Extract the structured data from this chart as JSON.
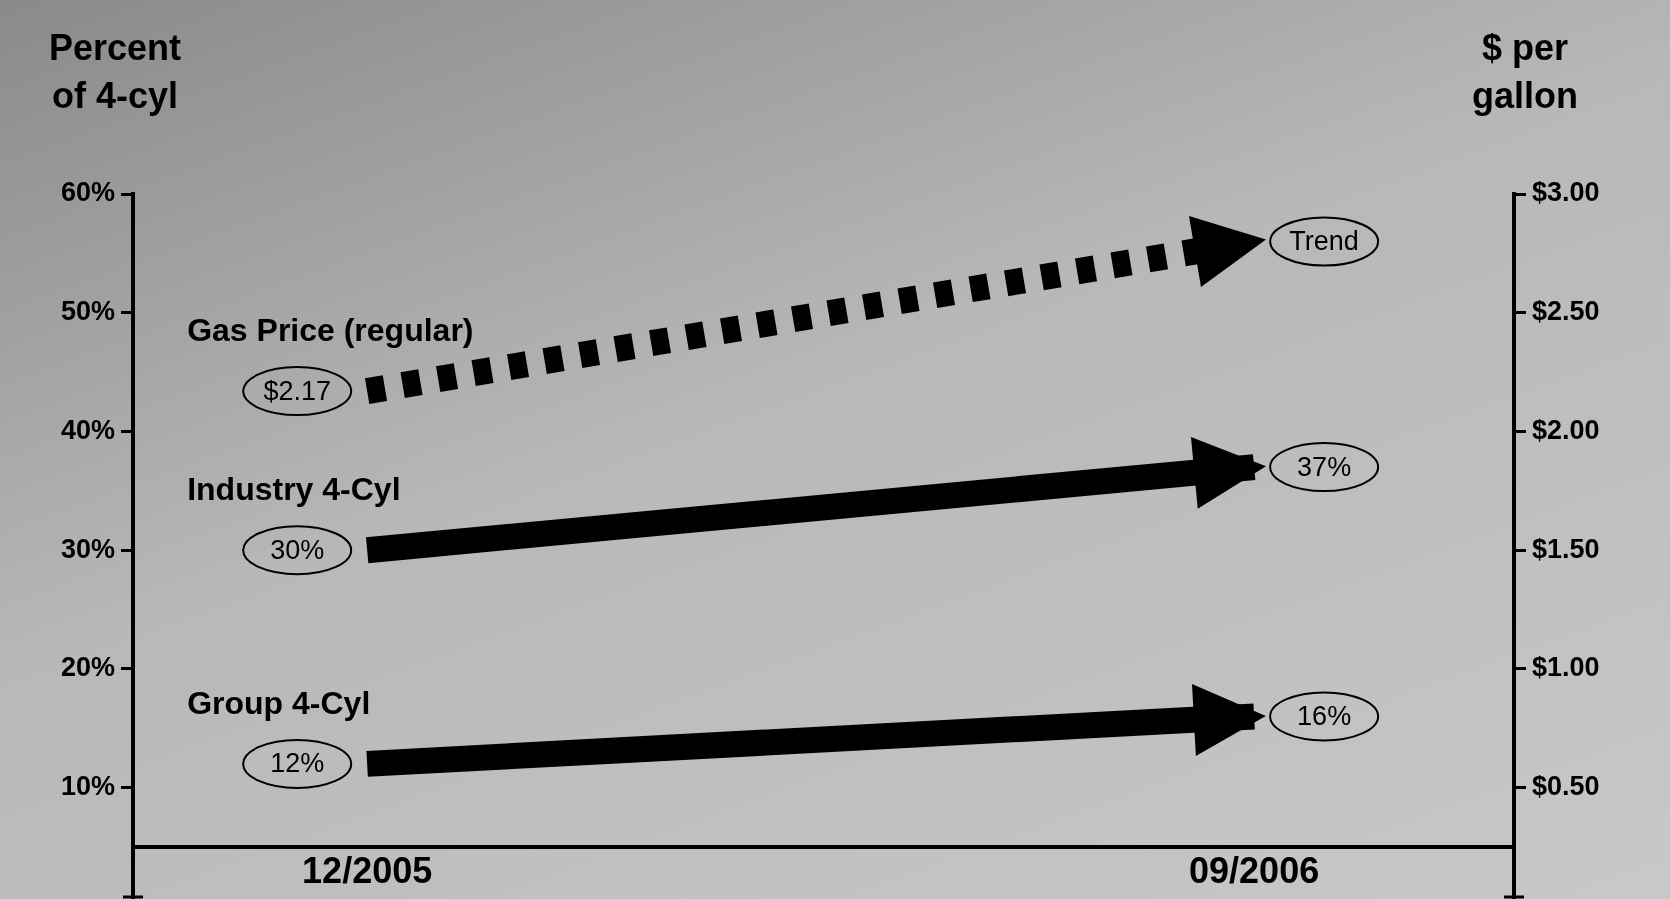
{
  "chart_data": {
    "type": "line",
    "ylabel": "Percent of 4-cyl",
    "y2label": "$ per gallon",
    "categories": [
      "12/2005",
      "09/2006"
    ],
    "series": [
      {
        "name": "Gas Price (regular)",
        "color": "#000000",
        "values": [
          2.17,
          2.8
        ],
        "axis": "y2",
        "line_style": "dotted",
        "value_labels": [
          "$2.17",
          "Trend"
        ]
      },
      {
        "name": "Industry 4-Cyl",
        "color": "#000000",
        "values": [
          30,
          37
        ],
        "value_labels": [
          "30%",
          "37%"
        ]
      },
      {
        "name": "Group 4-Cyl",
        "color": "#000000",
        "values": [
          12,
          16
        ],
        "value_labels": [
          "12%",
          "16%"
        ]
      }
    ],
    "ylim": [
      5,
      60
    ],
    "yticks": [
      {
        "value": 10,
        "label": "10%"
      },
      {
        "value": 20,
        "label": "20%"
      },
      {
        "value": 30,
        "label": "30%"
      },
      {
        "value": 40,
        "label": "40%"
      },
      {
        "value": 50,
        "label": "50%"
      },
      {
        "value": 60,
        "label": "60%"
      }
    ],
    "y2lim": [
      0.25,
      3
    ],
    "y2ticks": [
      {
        "value": 0.5,
        "label": "$0.50"
      },
      {
        "value": 1,
        "label": "$1.00"
      },
      {
        "value": 1.5,
        "label": "$1.50"
      },
      {
        "value": 2,
        "label": "$2.00"
      },
      {
        "value": 2.5,
        "label": "$2.50"
      },
      {
        "value": 3,
        "label": "$3.00"
      }
    ],
    "grid": false,
    "legend": false,
    "marker": "none"
  }
}
